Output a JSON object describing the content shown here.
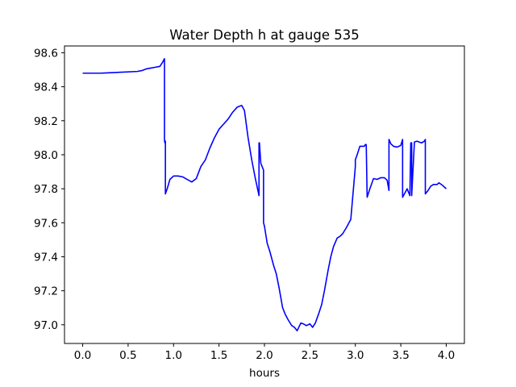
{
  "chart_data": {
    "type": "line",
    "title": "Water Depth h at gauge 535",
    "xlabel": "hours",
    "ylabel": "",
    "xlim": [
      -0.2,
      4.2
    ],
    "ylim": [
      96.89,
      98.64
    ],
    "xticks": [
      0.0,
      0.5,
      1.0,
      1.5,
      2.0,
      2.5,
      3.0,
      3.5,
      4.0
    ],
    "xtick_labels": [
      "0.0",
      "0.5",
      "1.0",
      "1.5",
      "2.0",
      "2.5",
      "3.0",
      "3.5",
      "4.0"
    ],
    "yticks": [
      97.0,
      97.2,
      97.4,
      97.6,
      97.8,
      98.0,
      98.2,
      98.4,
      98.6
    ],
    "ytick_labels": [
      "97.0",
      "97.2",
      "97.4",
      "97.6",
      "97.8",
      "98.0",
      "98.2",
      "98.4",
      "98.6"
    ],
    "grid": false,
    "legend": "none",
    "series": [
      {
        "color": "#0000ff",
        "x": [
          0.0,
          0.2,
          0.4,
          0.6,
          0.65,
          0.7,
          0.75,
          0.8,
          0.85,
          0.88,
          0.9,
          0.9,
          0.905,
          0.91,
          0.91,
          0.93,
          0.96,
          1.0,
          1.05,
          1.1,
          1.15,
          1.2,
          1.25,
          1.3,
          1.35,
          1.4,
          1.45,
          1.5,
          1.55,
          1.6,
          1.65,
          1.7,
          1.75,
          1.78,
          1.82,
          1.86,
          1.9,
          1.94,
          1.94,
          1.945,
          1.96,
          1.99,
          1.99,
          2.0,
          2.03,
          2.06,
          2.1,
          2.13,
          2.16,
          2.2,
          2.23,
          2.26,
          2.3,
          2.33,
          2.36,
          2.4,
          2.43,
          2.46,
          2.5,
          2.53,
          2.56,
          2.6,
          2.63,
          2.66,
          2.7,
          2.73,
          2.76,
          2.8,
          2.83,
          2.86,
          2.9,
          2.95,
          3.0,
          3.0,
          3.02,
          3.05,
          3.08,
          3.1,
          3.11,
          3.12,
          3.13,
          3.16,
          3.2,
          3.24,
          3.28,
          3.32,
          3.35,
          3.37,
          3.37,
          3.39,
          3.42,
          3.46,
          3.5,
          3.52,
          3.52,
          3.54,
          3.57,
          3.6,
          3.6,
          3.61,
          3.62,
          3.62,
          3.65,
          3.68,
          3.7,
          3.73,
          3.76,
          3.77,
          3.77,
          3.8,
          3.83,
          3.86,
          3.9,
          3.92,
          3.96,
          4.0
        ],
        "y": [
          98.48,
          98.48,
          98.485,
          98.49,
          98.495,
          98.505,
          98.51,
          98.515,
          98.52,
          98.545,
          98.565,
          98.085,
          98.07,
          98.08,
          97.77,
          97.8,
          97.855,
          97.875,
          97.875,
          97.87,
          97.855,
          97.84,
          97.86,
          97.93,
          97.97,
          98.04,
          98.1,
          98.15,
          98.18,
          98.21,
          98.25,
          98.28,
          98.29,
          98.26,
          98.1,
          97.97,
          97.86,
          97.76,
          98.07,
          98.07,
          97.95,
          97.91,
          97.6,
          97.58,
          97.48,
          97.43,
          97.35,
          97.3,
          97.22,
          97.1,
          97.06,
          97.03,
          96.995,
          96.985,
          96.965,
          97.01,
          97.005,
          96.995,
          97.005,
          96.985,
          97.01,
          97.07,
          97.12,
          97.2,
          97.32,
          97.4,
          97.46,
          97.51,
          97.52,
          97.535,
          97.57,
          97.62,
          97.93,
          97.97,
          98.0,
          98.05,
          98.05,
          98.05,
          98.06,
          98.06,
          97.75,
          97.8,
          97.86,
          97.855,
          97.865,
          97.865,
          97.85,
          97.79,
          98.09,
          98.065,
          98.05,
          98.045,
          98.055,
          98.09,
          97.75,
          97.77,
          97.8,
          97.76,
          97.76,
          98.07,
          98.07,
          97.76,
          98.075,
          98.08,
          98.075,
          98.07,
          98.08,
          98.09,
          97.77,
          97.79,
          97.815,
          97.825,
          97.825,
          97.835,
          97.82,
          97.8
        ]
      }
    ]
  }
}
